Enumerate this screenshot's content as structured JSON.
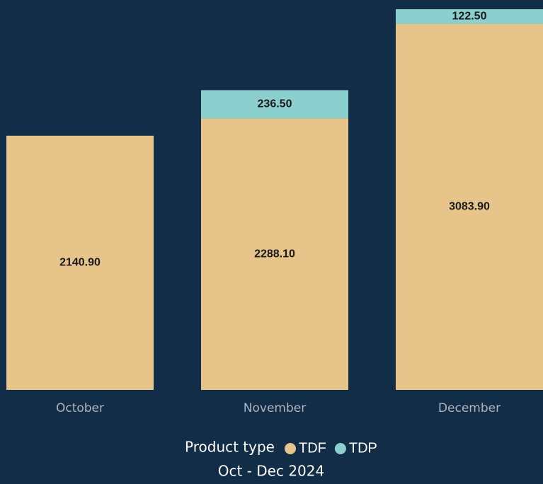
{
  "chart_data": {
    "type": "stacked_bar",
    "categories": [
      "October",
      "November",
      "December"
    ],
    "series": [
      {
        "name": "TDF",
        "color": "#e6c48a",
        "values": [
          2140.9,
          2288.1,
          3083.9
        ],
        "value_labels": [
          "2140.90",
          "2288.10",
          "3083.90"
        ]
      },
      {
        "name": "TDP",
        "color": "#8bd0cf",
        "values": [
          null,
          236.5,
          122.5
        ],
        "value_labels": [
          null,
          "236.50",
          "122.50"
        ]
      }
    ],
    "legend_title": "Product type",
    "subtitle": "Oct - Dec 2024"
  }
}
